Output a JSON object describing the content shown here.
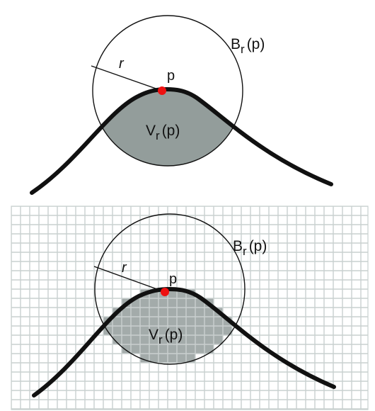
{
  "top_panel": {
    "ball_label_main": "B",
    "ball_label_sub": "r",
    "ball_label_arg": "(p)",
    "radius_label": "r",
    "point_label": "p",
    "volume_label_main": "V",
    "volume_label_sub": "r",
    "volume_label_arg": "(p)"
  },
  "bottom_panel": {
    "ball_label_main": "B",
    "ball_label_sub": "r",
    "ball_label_arg": "(p)",
    "radius_label": "r",
    "point_label": "p",
    "volume_label_main": "V",
    "volume_label_sub": "r",
    "volume_label_arg": "(p)"
  },
  "colors": {
    "curve": "#111111",
    "region_fill": "#939d9b",
    "point": "#ee1111",
    "grid_line": "#c9d0cf",
    "pixel_fill": "#a3abaa"
  }
}
